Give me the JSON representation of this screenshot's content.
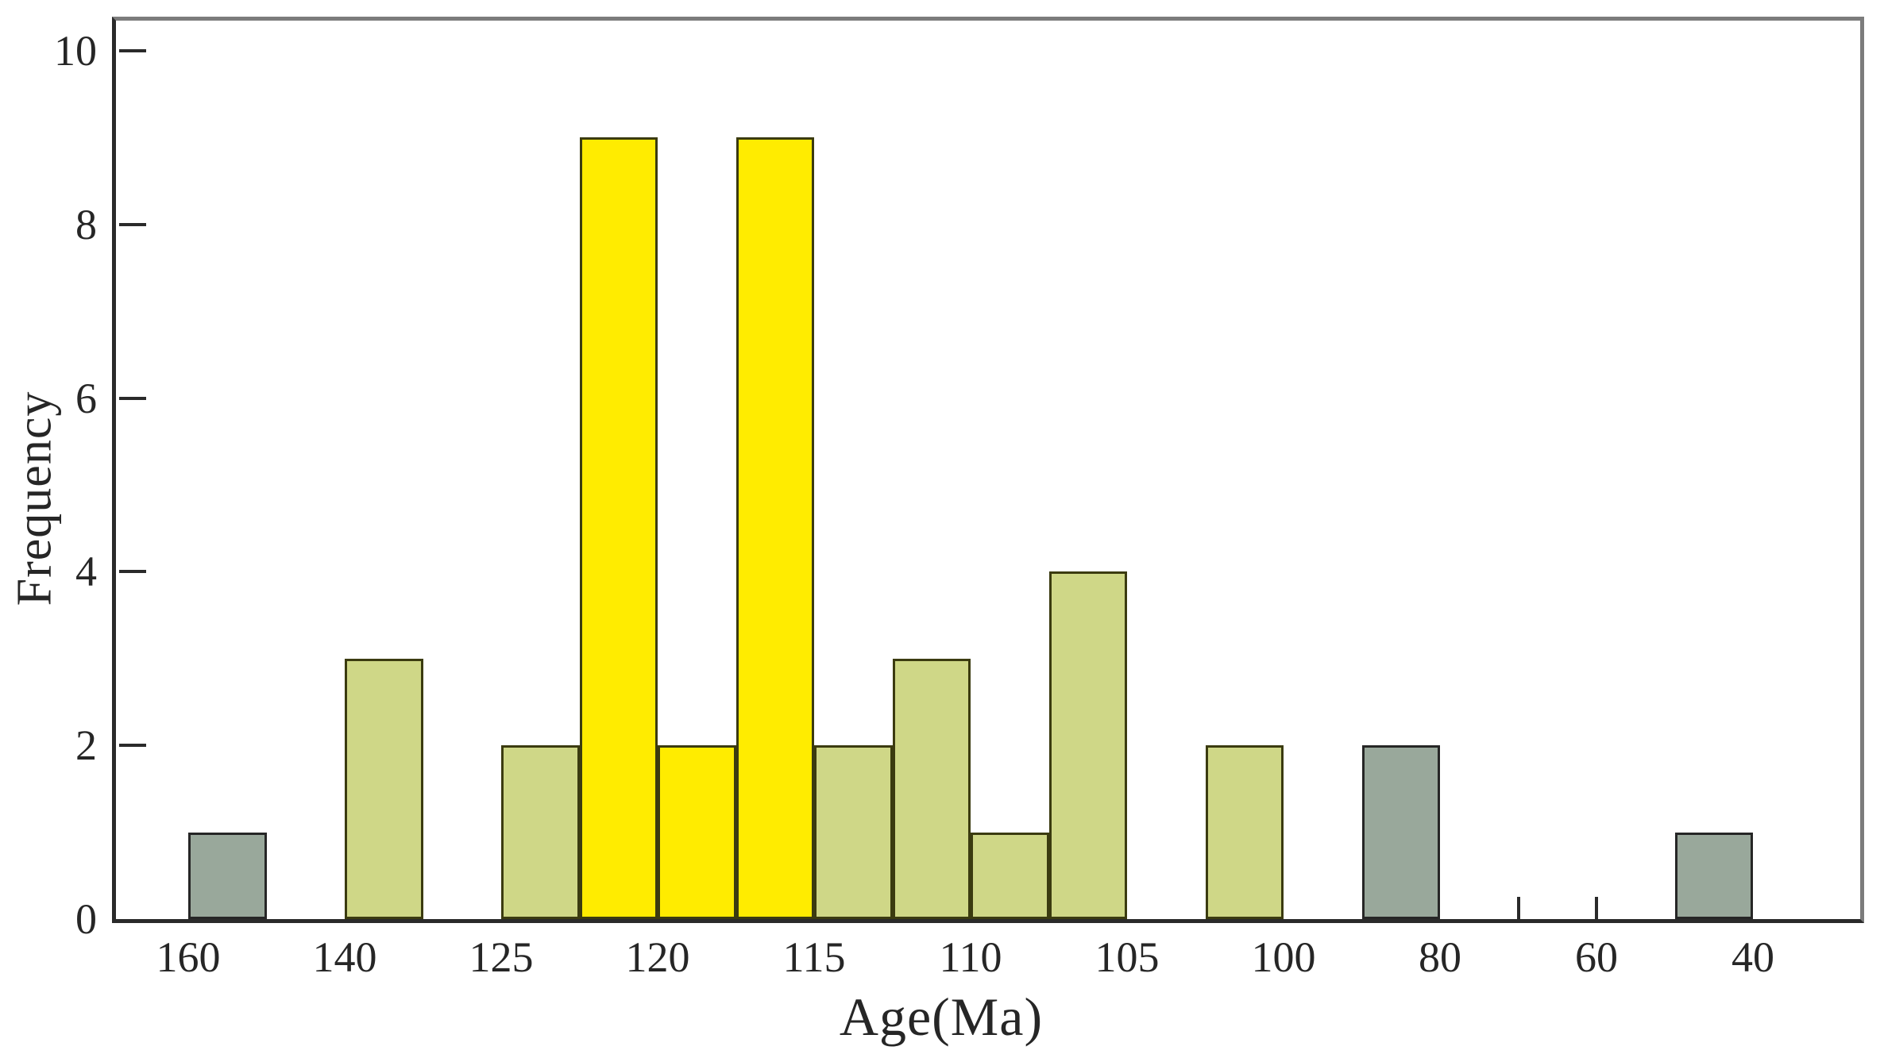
{
  "chart_data": {
    "type": "bar",
    "title": "",
    "xlabel": "Age(Ma)",
    "ylabel": "Frequency",
    "x_tick_labels": [
      "160",
      "140",
      "125",
      "120",
      "115",
      "110",
      "105",
      "100",
      "80",
      "60",
      "40"
    ],
    "y_tick_labels": [
      "0",
      "2",
      "4",
      "6",
      "8",
      "10"
    ],
    "ylim": [
      0,
      10
    ],
    "grid": false,
    "legend": false,
    "axis_note": "Age decreases left to right with uneven label steps; each labeled interval holds two histogram slots",
    "slots_per_interval": 2,
    "bars": [
      {
        "slot": 0,
        "age_bin": "160-150",
        "series": "gray",
        "value": 1
      },
      {
        "slot": 2,
        "age_bin": "140-132.5",
        "series": "green",
        "value": 3
      },
      {
        "slot": 4,
        "age_bin": "125-122.5",
        "series": "green",
        "value": 2
      },
      {
        "slot": 5,
        "age_bin": "122.5-120",
        "series": "yellow",
        "value": 9
      },
      {
        "slot": 6,
        "age_bin": "120-117.5",
        "series": "yellow",
        "value": 2
      },
      {
        "slot": 7,
        "age_bin": "117.5-115",
        "series": "yellow",
        "value": 9
      },
      {
        "slot": 8,
        "age_bin": "115-112.5",
        "series": "green",
        "value": 2
      },
      {
        "slot": 9,
        "age_bin": "112.5-110",
        "series": "green",
        "value": 3
      },
      {
        "slot": 10,
        "age_bin": "110-107.5",
        "series": "green",
        "value": 1
      },
      {
        "slot": 11,
        "age_bin": "107.5-105",
        "series": "green",
        "value": 4
      },
      {
        "slot": 13,
        "age_bin": "102.5-100",
        "series": "green",
        "value": 2
      },
      {
        "slot": 15,
        "age_bin": "90-80",
        "series": "gray",
        "value": 2
      },
      {
        "slot": 19,
        "age_bin": "50-40",
        "series": "gray",
        "value": 1
      }
    ],
    "x_minor_ticks": [
      {
        "between_labels": [
          "80",
          "60"
        ]
      },
      {
        "at_label": "60"
      }
    ],
    "colors": {
      "bar_yellow": "#FFEC00",
      "bar_green": "#CFD787",
      "bar_gray": "#99A89B",
      "bar_border_olive": "#3B3B10",
      "bar_border_dark": "#262626",
      "axis": "#2A2A2A",
      "frame_light": "#7C7C7C",
      "text": "#262626",
      "background": "#FFFFFF"
    }
  }
}
